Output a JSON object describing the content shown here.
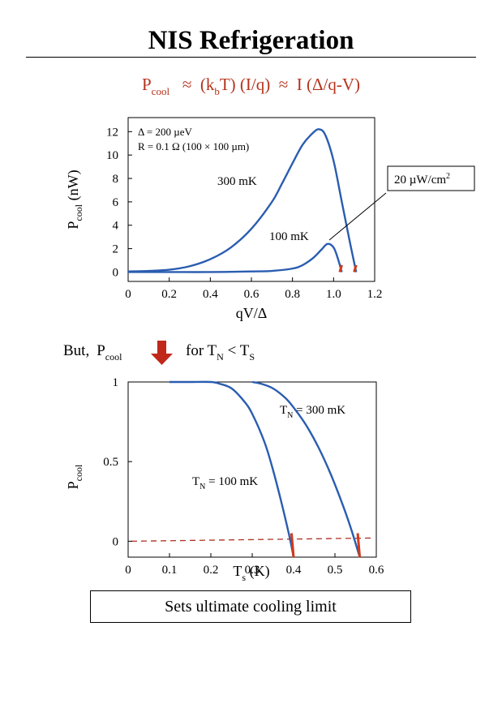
{
  "slide": {
    "title": "NIS Refrigeration",
    "equation": {
      "p": "P",
      "p_sub": "cool",
      "approx1": "≈",
      "term1_a": "(k",
      "term1_sub": "b",
      "term1_b": "T) (I/q)",
      "approx2": "≈",
      "term2": "I (Δ/q-V)"
    },
    "colors": {
      "title_equation": "#b5321c",
      "curve": "#2a5db0",
      "marker": "#d23a1a",
      "arrow": "#c0281a"
    },
    "but_line": {
      "lead": "But,",
      "p": "P",
      "p_sub": "cool",
      "arrow_icon": "down-arrow-icon",
      "cond_a": "for T",
      "cond_sub1": "N",
      "cond_b": " < T",
      "cond_sub2": "S"
    },
    "caption": "Sets ultimate cooling limit"
  },
  "chart_data": [
    {
      "type": "line",
      "title": "",
      "xlabel": "qV/Δ",
      "ylabel": "P",
      "ylabel_sub": "cool",
      "ylabel_unit": " (nW)",
      "xlim": [
        0,
        1.2
      ],
      "ylim": [
        -0.8,
        13.2
      ],
      "xticks": [
        "0",
        "0.2",
        "0.4",
        "0.6",
        "0.8",
        "1.0",
        "1.2"
      ],
      "yticks": [
        "0",
        "2",
        "4",
        "6",
        "8",
        "10",
        "12"
      ],
      "grid": false,
      "annotations": [
        "Δ = 200 µeV",
        "R = 0.1 Ω  (100 × 100 µm)"
      ],
      "callout": {
        "text": "20 µW/cm",
        "sup": "2"
      },
      "series": [
        {
          "name": "300 mK",
          "x": [
            0,
            0.1,
            0.2,
            0.3,
            0.4,
            0.5,
            0.6,
            0.7,
            0.75,
            0.8,
            0.85,
            0.9,
            0.93,
            0.96,
            1.0,
            1.04,
            1.08,
            1.11
          ],
          "y": [
            0.05,
            0.1,
            0.2,
            0.5,
            1.1,
            2.1,
            3.7,
            6.0,
            7.6,
            9.3,
            10.9,
            11.9,
            12.2,
            11.7,
            9.5,
            6.0,
            2.5,
            0.0
          ]
        },
        {
          "name": "100 mK",
          "x": [
            0,
            0.2,
            0.4,
            0.6,
            0.7,
            0.8,
            0.85,
            0.9,
            0.94,
            0.97,
            1.0,
            1.02,
            1.04
          ],
          "y": [
            0,
            0,
            0,
            0.05,
            0.1,
            0.3,
            0.6,
            1.2,
            1.9,
            2.4,
            2.1,
            1.2,
            0.0
          ]
        }
      ],
      "marker_segments": [
        {
          "x": [
            1.03,
            1.04
          ],
          "y": [
            0,
            0.6
          ]
        },
        {
          "x": [
            1.1,
            1.11
          ],
          "y": [
            0,
            0.6
          ]
        }
      ]
    },
    {
      "type": "line",
      "title": "",
      "xlabel": "T",
      "xlabel_sub": "s",
      "xlabel_unit": " (K)",
      "ylabel": "P",
      "ylabel_sub": "cool",
      "xlim": [
        0,
        0.6
      ],
      "ylim": [
        -0.1,
        1.0
      ],
      "xticks": [
        "0",
        "0.1",
        "0.2",
        "0.3",
        "0.4",
        "0.5",
        "0.6"
      ],
      "yticks": [
        "0",
        "0.5",
        "1"
      ],
      "grid": false,
      "reference_line": {
        "y": 0,
        "style": "dashed",
        "color": "#b03020"
      },
      "series": [
        {
          "name": "100 mK",
          "label_a": "T",
          "label_sub": "N",
          "label_b": " = 100 mK",
          "x": [
            0.1,
            0.15,
            0.2,
            0.22,
            0.25,
            0.28,
            0.3,
            0.33,
            0.35,
            0.37,
            0.39,
            0.4
          ],
          "y": [
            1.0,
            1.0,
            1.0,
            0.99,
            0.96,
            0.88,
            0.8,
            0.62,
            0.45,
            0.25,
            0.03,
            -0.1
          ]
        },
        {
          "name": "300 mK",
          "label_a": "T",
          "label_sub": "N",
          "label_b": " = 300 mK",
          "x": [
            0.3,
            0.32,
            0.35,
            0.38,
            0.4,
            0.43,
            0.46,
            0.49,
            0.52,
            0.54,
            0.56
          ],
          "y": [
            1.0,
            0.99,
            0.96,
            0.9,
            0.84,
            0.73,
            0.59,
            0.42,
            0.22,
            0.07,
            -0.1
          ]
        }
      ],
      "marker_segments": [
        {
          "x": [
            0.395,
            0.4
          ],
          "y": [
            0.05,
            -0.1
          ]
        },
        {
          "x": [
            0.555,
            0.56
          ],
          "y": [
            0.05,
            -0.1
          ]
        }
      ]
    }
  ]
}
